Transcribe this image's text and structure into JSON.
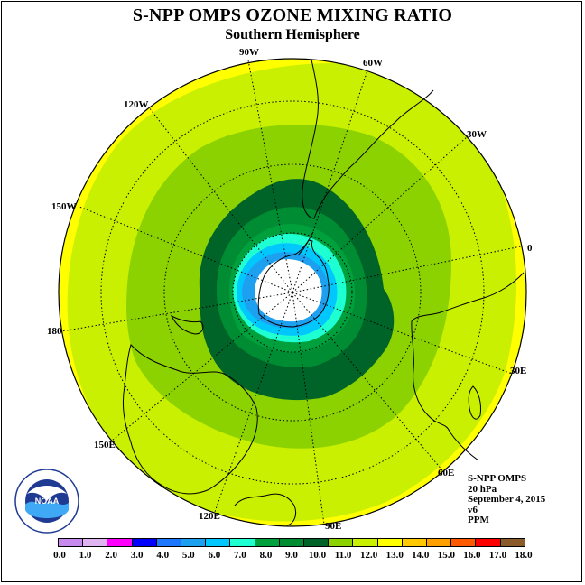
{
  "title": "S-NPP OMPS OZONE MIXING RATIO",
  "subtitle": "Southern Hemisphere",
  "longitude_labels": [
    "90W",
    "60W",
    "30W",
    "0",
    "30E",
    "60E",
    "90E",
    "120E",
    "150E",
    "180",
    "150W",
    "120W"
  ],
  "info": {
    "instrument": "S-NPP OMPS",
    "level": "20 hPa",
    "date": "September 4, 2015",
    "version": "v6",
    "units": "PPM"
  },
  "logo_text": {
    "main": "NOAA",
    "ring": "NATIONAL OCEANIC AND ATMOSPHERIC ADMINISTRATION",
    "bottom": "U.S. DEPARTMENT OF COMMERCE"
  },
  "colorbar": {
    "tick_labels": [
      "0.0",
      "1.0",
      "2.0",
      "3.0",
      "4.0",
      "5.0",
      "6.0",
      "7.0",
      "8.0",
      "9.0",
      "10.0",
      "11.0",
      "12.0",
      "13.0",
      "14.0",
      "15.0",
      "16.0",
      "17.0",
      "18.0"
    ],
    "colors": [
      "#c78bf0",
      "#e0b4f0",
      "#ff00ff",
      "#0000ff",
      "#1e78ff",
      "#1ea0f0",
      "#00c8ff",
      "#1effd2",
      "#00a03c",
      "#008c32",
      "#006428",
      "#8cd200",
      "#c8f000",
      "#ffff00",
      "#ffc800",
      "#ffa000",
      "#ff5a00",
      "#ff0000",
      "#8b5a2b"
    ]
  },
  "ozone_field": {
    "units": "PPM",
    "pole_value": "no data (polar night)",
    "zones_equator_to_pole_ppm": [
      "13-14",
      "12-13",
      "11-12",
      "10-11",
      "9-10",
      "8-9",
      "7-8",
      "6-7",
      "5-6"
    ]
  }
}
